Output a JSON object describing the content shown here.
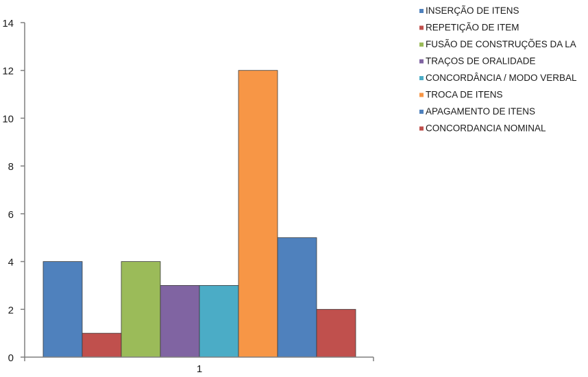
{
  "chart_data": {
    "type": "bar",
    "categories": [
      "1"
    ],
    "ylim": [
      0,
      14
    ],
    "yticks": [
      0,
      2,
      4,
      6,
      8,
      10,
      12,
      14
    ],
    "grid": false,
    "legend_position": "top-right",
    "series": [
      {
        "name": "INSERÇÃO DE ITENS",
        "values": [
          4
        ],
        "color": "#4f81bd"
      },
      {
        "name": "REPETIÇÃO DE ITEM",
        "values": [
          1
        ],
        "color": "#c0504d"
      },
      {
        "name": "FUSÃO DE CONSTRUÇÕES DA LA",
        "values": [
          4
        ],
        "color": "#9bbb59"
      },
      {
        "name": "TRAÇOS DE ORALIDADE",
        "values": [
          3
        ],
        "color": "#8064a2"
      },
      {
        "name": "CONCORDÂNCIA / MODO VERBAL",
        "values": [
          3
        ],
        "color": "#4bacc6"
      },
      {
        "name": "TROCA DE ITENS",
        "values": [
          12
        ],
        "color": "#f79646"
      },
      {
        "name": "APAGAMENTO DE ITENS",
        "values": [
          5
        ],
        "color": "#4f81bd"
      },
      {
        "name": "CONCORDANCIA NOMINAL",
        "values": [
          2
        ],
        "color": "#c0504d"
      }
    ]
  }
}
